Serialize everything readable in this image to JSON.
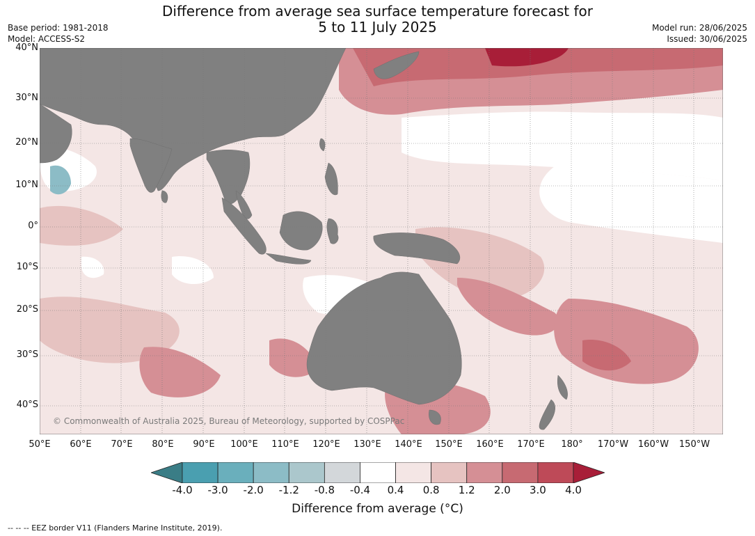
{
  "header": {
    "title_line1": "Difference from average sea surface temperature forecast for",
    "title_line2": "5 to 11 July 2025",
    "base_period": "Base period: 1981-2018",
    "model": "Model: ACCESS-S2",
    "model_run": "Model run: 28/06/2025",
    "issued": "Issued: 30/06/2025"
  },
  "map": {
    "region": "Indian Ocean - Western Pacific",
    "lat_labels": [
      "40°N",
      "30°N",
      "20°N",
      "10°N",
      "0°",
      "10°S",
      "20°S",
      "30°S",
      "40°S"
    ],
    "lon_labels": [
      "50°E",
      "60°E",
      "70°E",
      "80°E",
      "90°E",
      "100°E",
      "110°E",
      "120°E",
      "130°E",
      "140°E",
      "150°E",
      "160°E",
      "170°E",
      "180°",
      "170°W",
      "160°W",
      "150°W"
    ],
    "credit": "© Commonwealth of Australia 2025, Bureau of Meteorology, supported by COSPPac",
    "land_color": "#808080",
    "gridline_style": "dotted"
  },
  "colorbar": {
    "labels": [
      "-4.0",
      "-3.0",
      "-2.0",
      "-1.2",
      "-0.8",
      "-0.4",
      "0.4",
      "0.8",
      "1.2",
      "2.0",
      "3.0",
      "4.0"
    ],
    "colors": [
      "#3a7d86",
      "#4a9fb0",
      "#6aafbc",
      "#8cbcc6",
      "#abc7cc",
      "#d3d7da",
      "#ffffff",
      "#f4e6e5",
      "#e6c3c1",
      "#d58f95",
      "#c76a72",
      "#be4a58",
      "#a81e38"
    ],
    "title": "Difference from average (",
    "unit": "°C",
    "title_end": ")"
  },
  "footer": {
    "eez_note": "--  --  -- EEZ border V11 (Flanders Marine Institute, 2019)."
  }
}
